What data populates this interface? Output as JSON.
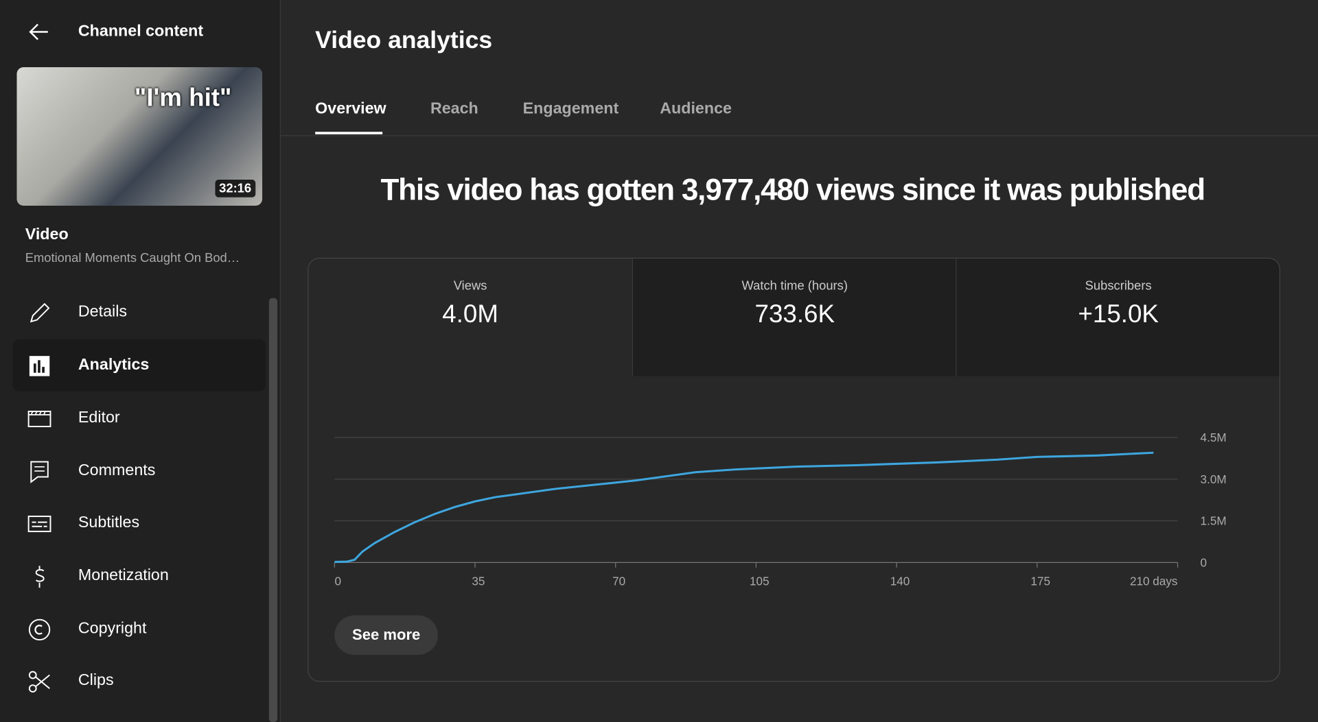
{
  "sidebar": {
    "back_label": "Channel content",
    "thumbnail": {
      "caption": "\"I'm hit\"",
      "duration": "32:16"
    },
    "video_heading": "Video",
    "video_title": "Emotional Moments Caught On Bod…",
    "nav": [
      "Details",
      "Analytics",
      "Editor",
      "Comments",
      "Subtitles",
      "Monetization",
      "Copyright",
      "Clips"
    ]
  },
  "header": {
    "title": "Video analytics",
    "tabs": [
      "Overview",
      "Reach",
      "Engagement",
      "Audience"
    ]
  },
  "headline": "This video has gotten 3,977,480 views since it was published",
  "metrics": [
    {
      "label": "Views",
      "value": "4.0M"
    },
    {
      "label": "Watch time (hours)",
      "value": "733.6K"
    },
    {
      "label": "Subscribers",
      "value": "+15.0K"
    }
  ],
  "chart_data": {
    "type": "line",
    "color": "#3ea6df",
    "x": [
      0,
      3,
      5,
      7,
      10,
      15,
      20,
      25,
      30,
      35,
      40,
      45,
      55,
      65,
      75,
      80,
      90,
      100,
      115,
      130,
      150,
      165,
      175,
      190,
      204
    ],
    "values": [
      20000,
      30000,
      100000,
      400000,
      700000,
      1100000,
      1450000,
      1750000,
      2000000,
      2200000,
      2350000,
      2450000,
      2650000,
      2800000,
      2950000,
      3050000,
      3250000,
      3350000,
      3450000,
      3500000,
      3600000,
      3700000,
      3800000,
      3850000,
      3950000
    ],
    "xlim": [
      0,
      210
    ],
    "ylim": [
      0,
      4500000
    ],
    "xticks": [
      0,
      35,
      70,
      105,
      140,
      175,
      {
        "value": 210,
        "label": "210 days"
      }
    ],
    "yticks": [
      0,
      {
        "value": 1500000,
        "label": "1.5M"
      },
      {
        "value": 3000000,
        "label": "3.0M"
      },
      {
        "value": 4500000,
        "label": "4.5M"
      }
    ],
    "grid": true
  },
  "button": "See more"
}
